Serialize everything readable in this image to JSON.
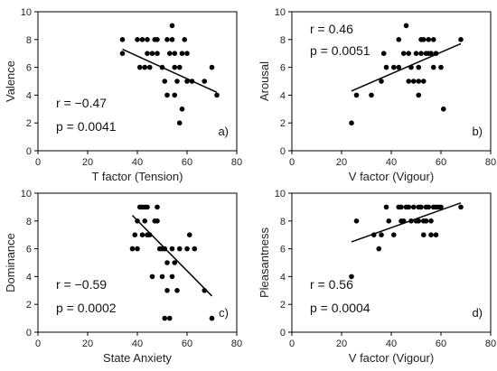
{
  "chart_data": [
    {
      "type": "scatter",
      "panel_label": "a)",
      "xlabel": "T factor (Tension)",
      "ylabel": "Valence",
      "xlim": [
        0,
        80
      ],
      "ylim": [
        0,
        10
      ],
      "xticks": [
        0,
        20,
        40,
        60,
        80
      ],
      "yticks": [
        0,
        2,
        4,
        6,
        8,
        10
      ],
      "stats": [
        "r = −0.47",
        "p = 0.0041"
      ],
      "stats_position": "bottom-left",
      "fit_line": {
        "x": [
          34,
          72
        ],
        "y": [
          7.3,
          4.2
        ]
      },
      "points": [
        [
          34,
          8
        ],
        [
          34,
          7
        ],
        [
          40,
          8
        ],
        [
          42,
          8
        ],
        [
          44,
          8
        ],
        [
          47,
          8
        ],
        [
          48,
          8
        ],
        [
          52,
          8
        ],
        [
          54,
          8
        ],
        [
          41,
          6
        ],
        [
          43,
          6
        ],
        [
          45,
          6
        ],
        [
          44,
          7
        ],
        [
          46,
          7
        ],
        [
          48,
          7
        ],
        [
          50,
          6
        ],
        [
          51,
          5
        ],
        [
          52,
          4
        ],
        [
          53,
          7
        ],
        [
          55,
          7
        ],
        [
          54,
          9
        ],
        [
          55,
          6
        ],
        [
          55,
          4
        ],
        [
          56,
          5
        ],
        [
          58,
          7
        ],
        [
          59,
          8
        ],
        [
          60,
          7
        ],
        [
          57,
          6
        ],
        [
          58,
          3
        ],
        [
          57,
          2
        ],
        [
          60,
          5
        ],
        [
          62,
          5
        ],
        [
          67,
          5
        ],
        [
          70,
          6
        ],
        [
          72,
          4
        ]
      ]
    },
    {
      "type": "scatter",
      "panel_label": "b)",
      "xlabel": "V factor (Vigour)",
      "ylabel": "Arousal",
      "xlim": [
        0,
        80
      ],
      "ylim": [
        0,
        10
      ],
      "xticks": [
        0,
        20,
        40,
        60,
        80
      ],
      "yticks": [
        0,
        2,
        4,
        6,
        8,
        10
      ],
      "stats": [
        "r = 0.46",
        "p = 0.0051"
      ],
      "stats_position": "top-left",
      "fit_line": {
        "x": [
          24,
          68
        ],
        "y": [
          4.3,
          7.7
        ]
      },
      "points": [
        [
          24,
          2
        ],
        [
          26,
          4
        ],
        [
          32,
          4
        ],
        [
          36,
          5
        ],
        [
          37,
          7
        ],
        [
          38,
          6
        ],
        [
          41,
          6
        ],
        [
          43,
          6
        ],
        [
          43,
          8
        ],
        [
          46,
          9
        ],
        [
          45,
          7
        ],
        [
          47,
          7
        ],
        [
          47,
          5
        ],
        [
          48,
          6
        ],
        [
          49,
          5
        ],
        [
          50,
          7
        ],
        [
          51,
          5
        ],
        [
          51,
          4
        ],
        [
          51,
          6
        ],
        [
          52,
          7
        ],
        [
          53,
          5
        ],
        [
          52,
          8
        ],
        [
          53,
          8
        ],
        [
          54,
          7
        ],
        [
          55,
          7
        ],
        [
          55,
          8
        ],
        [
          56,
          7
        ],
        [
          57,
          6
        ],
        [
          57,
          8
        ],
        [
          58,
          7
        ],
        [
          60,
          6
        ],
        [
          61,
          3
        ],
        [
          68,
          8
        ]
      ]
    },
    {
      "type": "scatter",
      "panel_label": "c)",
      "xlabel": "State Anxiety",
      "ylabel": "Dominance",
      "xlim": [
        0,
        80
      ],
      "ylim": [
        0,
        10
      ],
      "xticks": [
        0,
        20,
        40,
        60,
        80
      ],
      "yticks": [
        0,
        2,
        4,
        6,
        8,
        10
      ],
      "stats": [
        "r = −0.59",
        "p = 0.0002"
      ],
      "stats_position": "bottom-left",
      "fit_line": {
        "x": [
          38,
          70
        ],
        "y": [
          8.4,
          2.6
        ]
      },
      "points": [
        [
          38,
          6
        ],
        [
          39,
          7
        ],
        [
          40,
          6
        ],
        [
          40,
          8
        ],
        [
          41,
          9
        ],
        [
          42,
          9
        ],
        [
          42,
          7
        ],
        [
          43,
          9
        ],
        [
          43,
          8
        ],
        [
          44,
          9
        ],
        [
          44,
          7
        ],
        [
          45,
          7
        ],
        [
          46,
          4
        ],
        [
          47,
          8
        ],
        [
          48,
          8
        ],
        [
          48,
          9
        ],
        [
          49,
          6
        ],
        [
          50,
          6
        ],
        [
          50,
          4
        ],
        [
          51,
          1
        ],
        [
          51,
          6
        ],
        [
          52,
          3
        ],
        [
          52,
          5
        ],
        [
          53,
          1
        ],
        [
          54,
          4
        ],
        [
          54,
          6
        ],
        [
          55,
          5
        ],
        [
          56,
          3
        ],
        [
          57,
          6
        ],
        [
          60,
          6
        ],
        [
          61,
          7
        ],
        [
          63,
          6
        ],
        [
          67,
          3
        ],
        [
          70,
          1
        ]
      ]
    },
    {
      "type": "scatter",
      "panel_label": "d)",
      "xlabel": "V factor (Vigour)",
      "ylabel": "Pleasantness",
      "xlim": [
        0,
        80
      ],
      "ylim": [
        0,
        10
      ],
      "xticks": [
        0,
        20,
        40,
        60,
        80
      ],
      "yticks": [
        0,
        2,
        4,
        6,
        8,
        10
      ],
      "stats": [
        "r = 0.56",
        "p = 0.0004"
      ],
      "stats_position": "bottom-left",
      "fit_line": {
        "x": [
          24,
          68
        ],
        "y": [
          6.5,
          9.3
        ]
      },
      "points": [
        [
          24,
          4
        ],
        [
          26,
          8
        ],
        [
          33,
          7
        ],
        [
          35,
          6
        ],
        [
          36,
          7
        ],
        [
          38,
          9
        ],
        [
          39,
          8
        ],
        [
          41,
          7
        ],
        [
          43,
          9
        ],
        [
          44,
          9
        ],
        [
          44,
          8
        ],
        [
          45,
          8
        ],
        [
          46,
          9
        ],
        [
          47,
          9
        ],
        [
          48,
          8
        ],
        [
          49,
          9
        ],
        [
          50,
          8
        ],
        [
          51,
          8
        ],
        [
          51,
          9
        ],
        [
          52,
          9
        ],
        [
          53,
          8
        ],
        [
          53,
          7
        ],
        [
          54,
          9
        ],
        [
          54,
          8
        ],
        [
          55,
          9
        ],
        [
          56,
          8
        ],
        [
          56,
          7
        ],
        [
          57,
          9
        ],
        [
          58,
          9
        ],
        [
          58,
          7
        ],
        [
          59,
          9
        ],
        [
          60,
          9
        ],
        [
          68,
          9
        ]
      ]
    }
  ]
}
